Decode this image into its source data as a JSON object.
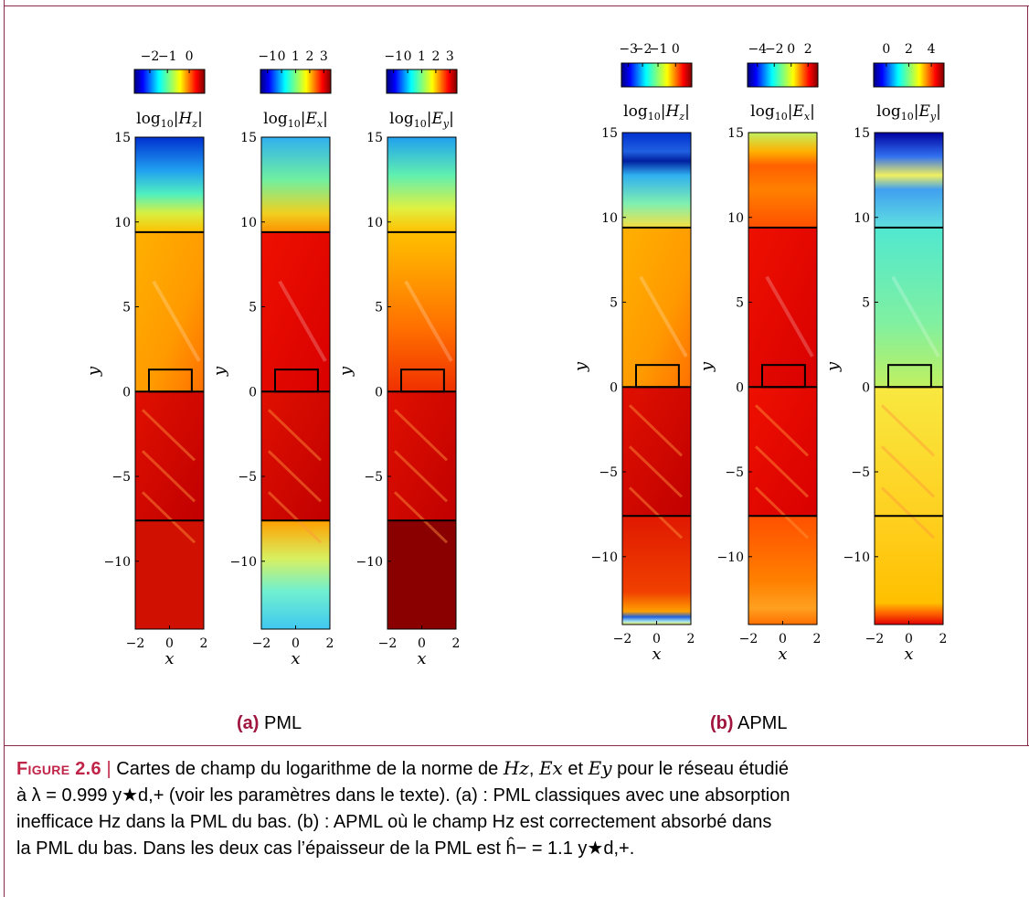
{
  "panels": [
    {
      "id": "a",
      "tag": "(a)",
      "label": "PML",
      "plots": [
        {
          "title": "log10|Hz|",
          "cb_ticks": [
            "−2",
            "−1",
            "0"
          ],
          "cb_tick_pos": [
            0.22,
            0.47,
            0.78
          ]
        },
        {
          "title": "log10|Ex|",
          "cb_ticks": [
            "−1",
            "0",
            "1",
            "2",
            "3"
          ],
          "cb_tick_pos": [
            0.1,
            0.3,
            0.5,
            0.7,
            0.9
          ]
        },
        {
          "title": "log10|Ey|",
          "cb_ticks": [
            "−1",
            "0",
            "1",
            "2",
            "3"
          ],
          "cb_tick_pos": [
            0.1,
            0.3,
            0.5,
            0.7,
            0.9
          ]
        }
      ]
    },
    {
      "id": "b",
      "tag": "(b)",
      "label": "APML",
      "plots": [
        {
          "title": "log10|Hz|",
          "cb_ticks": [
            "−3",
            "−2",
            "−1",
            "0"
          ],
          "cb_tick_pos": [
            0.1,
            0.3,
            0.52,
            0.77
          ]
        },
        {
          "title": "log10|Ex|",
          "cb_ticks": [
            "−4",
            "−2",
            "0",
            "2"
          ],
          "cb_tick_pos": [
            0.14,
            0.38,
            0.62,
            0.86
          ]
        },
        {
          "title": "log10|Ey|",
          "cb_ticks": [
            "0",
            "2",
            "4"
          ],
          "cb_tick_pos": [
            0.18,
            0.5,
            0.82
          ]
        }
      ]
    }
  ],
  "axes": {
    "y_ticks": [
      "15",
      "10",
      "5",
      "0",
      "−5",
      "−10"
    ],
    "x_ticks": [
      "−2",
      "0",
      "2"
    ],
    "xlabel": "x",
    "ylabel": "y",
    "y_range": [
      -14,
      15
    ],
    "x_range": [
      -2,
      2
    ]
  },
  "caption": {
    "figure_label": "Figure 2.6",
    "separator": "|",
    "text_1": "Cartes de champ du logarithme de la norme de",
    "hz": "Hz",
    "ex": "Ex",
    "ey": "Ey",
    "text_2": "pour le réseau étudié",
    "text_3": "à λ = 0.999 y★d,+ (voir les paramètres dans le texte). (a) : PML classiques avec une absorption",
    "text_4": "inefficace Hz dans la PML du bas. (b) : APML où le champ Hz est correctement absorbé dans",
    "text_5": "la PML du bas. Dans les deux cas l’épaisseur de la PML est ĥ− = 1.1 y★d,+."
  },
  "colors": {
    "frame": "#8a2a4a",
    "caption_accent": "#c02548",
    "jet": [
      "#00007f",
      "#0000ff",
      "#007fff",
      "#00ffff",
      "#7fff7f",
      "#ffff00",
      "#ff7f00",
      "#ff0000",
      "#7f0000"
    ]
  }
}
